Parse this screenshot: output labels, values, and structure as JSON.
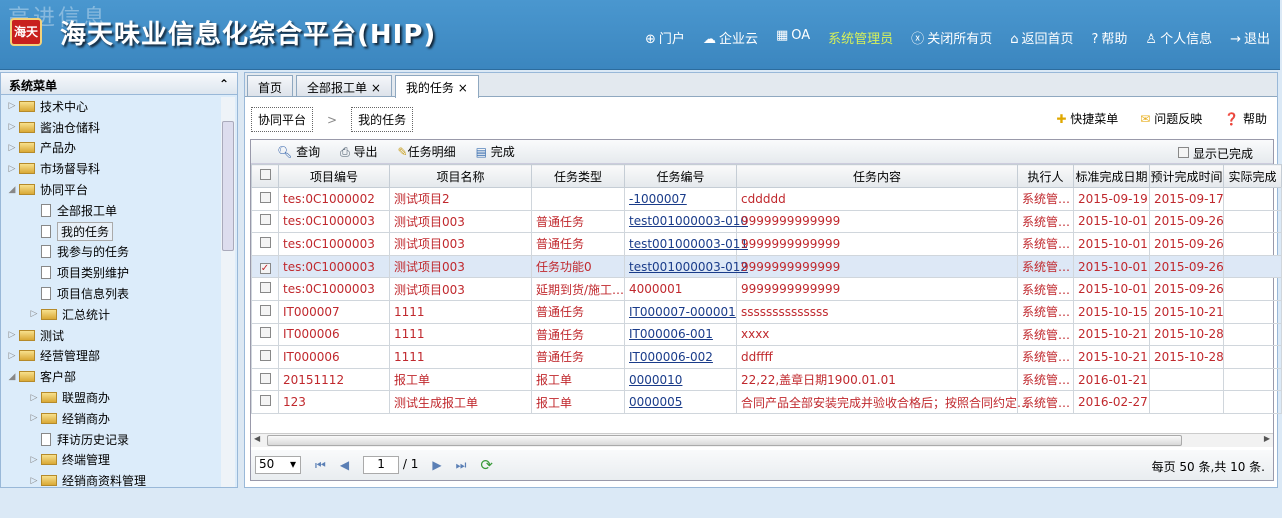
{
  "header": {
    "watermark": "高进信息",
    "logo": "海天",
    "title": "海天味业信息化综合平台(HIP)",
    "nav": [
      {
        "icon": "globe-icon",
        "glyph": "⊕",
        "label": "门户"
      },
      {
        "icon": "cloud-icon",
        "glyph": "☁",
        "label": "企业云"
      },
      {
        "icon": "grid-icon",
        "glyph": "▦",
        "label": "OA"
      },
      {
        "icon": "",
        "glyph": "",
        "label": "系统管理员"
      },
      {
        "icon": "close-circle-icon",
        "glyph": "ⓧ",
        "label": "关闭所有页"
      },
      {
        "icon": "home-icon",
        "glyph": "⌂",
        "label": "返回首页"
      },
      {
        "icon": "help-icon",
        "glyph": "?",
        "label": "帮助"
      },
      {
        "icon": "user-icon",
        "glyph": "♙",
        "label": "个人信息"
      },
      {
        "icon": "logout-icon",
        "glyph": "→",
        "label": "退出"
      }
    ]
  },
  "sidebar": {
    "title": "系统菜单",
    "collapse": "⌃",
    "items": [
      {
        "label": "技术中心",
        "type": "folder",
        "level": 0,
        "arrow": "▷"
      },
      {
        "label": "酱油仓储科",
        "type": "folder",
        "level": 0,
        "arrow": "▷"
      },
      {
        "label": "产品办",
        "type": "folder",
        "level": 0,
        "arrow": "▷"
      },
      {
        "label": "市场督导科",
        "type": "folder",
        "level": 0,
        "arrow": "▷"
      },
      {
        "label": "协同平台",
        "type": "folder",
        "level": 0,
        "arrow": "◢"
      },
      {
        "label": "全部报工单",
        "type": "doc",
        "level": 1,
        "arrow": ""
      },
      {
        "label": "我的任务",
        "type": "doc",
        "level": 1,
        "arrow": "",
        "selected": true
      },
      {
        "label": "我参与的任务",
        "type": "doc",
        "level": 1,
        "arrow": ""
      },
      {
        "label": "项目类别维护",
        "type": "doc",
        "level": 1,
        "arrow": ""
      },
      {
        "label": "项目信息列表",
        "type": "doc",
        "level": 1,
        "arrow": ""
      },
      {
        "label": "汇总统计",
        "type": "folder",
        "level": 1,
        "arrow": "▷"
      },
      {
        "label": "测试",
        "type": "folder",
        "level": 0,
        "arrow": "▷"
      },
      {
        "label": "经营管理部",
        "type": "folder",
        "level": 0,
        "arrow": "▷"
      },
      {
        "label": "客户部",
        "type": "folder",
        "level": 0,
        "arrow": "◢"
      },
      {
        "label": "联盟商办",
        "type": "folder",
        "level": 1,
        "arrow": "▷"
      },
      {
        "label": "经销商办",
        "type": "folder",
        "level": 1,
        "arrow": "▷"
      },
      {
        "label": "拜访历史记录",
        "type": "doc",
        "level": 1,
        "arrow": ""
      },
      {
        "label": "终端管理",
        "type": "folder",
        "level": 1,
        "arrow": "▷"
      },
      {
        "label": "经销商资料管理",
        "type": "folder",
        "level": 1,
        "arrow": "▷"
      }
    ]
  },
  "tabs": [
    {
      "label": "首页",
      "close": ""
    },
    {
      "label": "全部报工单",
      "close": "×"
    },
    {
      "label": "我的任务",
      "close": "×",
      "active": true
    }
  ],
  "breadcrumb": {
    "parent": "协同平台",
    "sep": ">",
    "current": "我的任务"
  },
  "quick": {
    "menu": "快捷菜单",
    "feedback": "问题反映",
    "help": "帮助"
  },
  "toolbar": {
    "query": "查询",
    "export": "导出",
    "detail": "任务明细",
    "complete": "完成",
    "show_done": "显示已完成"
  },
  "columns": [
    "项目编号",
    "项目名称",
    "任务类型",
    "任务编号",
    "任务内容",
    "执行人",
    "标准完成日期",
    "预计完成时间",
    "实际完成"
  ],
  "rows": [
    [
      "tes:0C1000002",
      "测试项目2",
      "",
      "-1000007",
      "cddddd",
      "系统管…",
      "2015-09-19",
      "2015-09-17",
      ""
    ],
    [
      "tes:0C1000003",
      "测试项目003",
      "普通任务",
      "test001000003-010",
      "9999999999999",
      "系统管…",
      "2015-10-01",
      "2015-09-26",
      ""
    ],
    [
      "tes:0C1000003",
      "测试项目003",
      "普通任务",
      "test001000003-011",
      "9999999999999",
      "系统管…",
      "2015-10-01",
      "2015-09-26",
      ""
    ],
    [
      "tes:0C1000003",
      "测试项目003",
      "任务功能0",
      "test001000003-012",
      "9999999999999",
      "系统管…",
      "2015-10-01",
      "2015-09-26",
      ""
    ],
    [
      "tes:0C1000003",
      "测试项目003",
      "延期到货/施工…",
      "4000001",
      "9999999999999",
      "系统管…",
      "2015-10-01",
      "2015-09-26",
      ""
    ],
    [
      "IT000007",
      "1111",
      "普通任务",
      "IT000007-000001",
      "ssssssssssssss",
      "系统管…",
      "2015-10-15",
      "2015-10-21",
      ""
    ],
    [
      "IT000006",
      "1111",
      "普通任务",
      "IT000006-001",
      "xxxx",
      "系统管…",
      "2015-10-21",
      "2015-10-28",
      ""
    ],
    [
      "IT000006",
      "1111",
      "普通任务",
      "IT000006-002",
      "ddffff",
      "系统管…",
      "2015-10-21",
      "2015-10-28",
      ""
    ],
    [
      "20151112",
      "报工单",
      "报工单",
      "0000010",
      "22,22,盖章日期1900.01.01",
      "系统管…",
      "2016-01-21",
      "",
      ""
    ],
    [
      "123",
      "测试生成报工单",
      "报工单",
      "0000005",
      "合同产品全部安装完成并验收合格后；按照合同约定…",
      "系统管…",
      "2016-02-27",
      "",
      ""
    ]
  ],
  "checked_row": 3,
  "pager": {
    "page_size": "50",
    "page": "1",
    "total_pages": "/ 1",
    "info": "每页 50 条,共 10 条."
  },
  "colors": {
    "header": "#3f8dc4",
    "row_text": "#c0282d",
    "link": "#1a3c8a",
    "admin": "#d6f05a"
  }
}
